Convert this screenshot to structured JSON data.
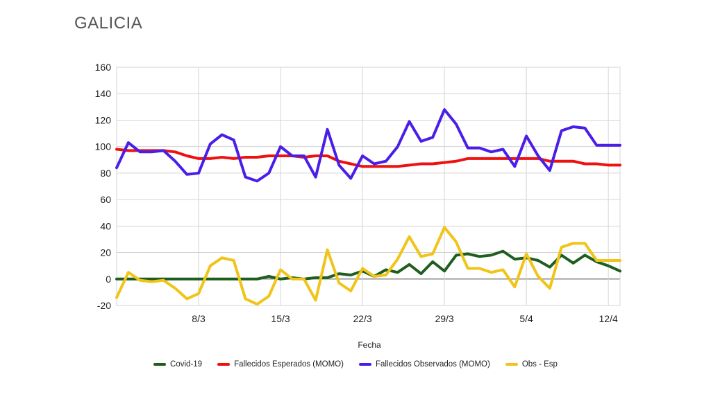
{
  "page": {
    "title": "GALICIA"
  },
  "chart_data": {
    "type": "line",
    "title": "GALICIA",
    "xlabel": "Fecha",
    "ylabel": "",
    "ylim": [
      -20,
      160
    ],
    "yticks": [
      -20,
      0,
      20,
      40,
      60,
      80,
      100,
      120,
      140,
      160
    ],
    "xlim": [
      1,
      42
    ],
    "x_ticks": [
      {
        "day": 8,
        "label": "8/3"
      },
      {
        "day": 15,
        "label": "15/3"
      },
      {
        "day": 22,
        "label": "22/3"
      },
      {
        "day": 29,
        "label": "29/3"
      },
      {
        "day": 36,
        "label": "5/4"
      },
      {
        "day": 43,
        "label": "12/4"
      }
    ],
    "x_days": [
      1,
      2,
      3,
      4,
      5,
      6,
      7,
      8,
      9,
      10,
      11,
      12,
      13,
      14,
      15,
      16,
      17,
      18,
      19,
      20,
      21,
      22,
      23,
      24,
      25,
      26,
      27,
      28,
      29,
      30,
      31,
      32,
      33,
      34,
      35,
      36,
      37,
      38,
      39,
      40,
      41,
      42,
      43,
      44
    ],
    "grid": true,
    "legend_position": "bottom",
    "series": [
      {
        "name": "Covid-19",
        "color": "#1e5e1e",
        "values": [
          0,
          0,
          0,
          0,
          0,
          0,
          0,
          0,
          0,
          0,
          0,
          0,
          0,
          2,
          0,
          1,
          0,
          1,
          1,
          4,
          3,
          6,
          2,
          7,
          5,
          11,
          4,
          13,
          6,
          18,
          19,
          17,
          18,
          21,
          15,
          16,
          14,
          9,
          18,
          12,
          18,
          13,
          10,
          6
        ]
      },
      {
        "name": "Fallecidos Esperados (MOMO)",
        "color": "#ee1111",
        "values": [
          98,
          97,
          97,
          97,
          97,
          96,
          93,
          91,
          91,
          92,
          91,
          92,
          92,
          93,
          93,
          93,
          92,
          93,
          93,
          89,
          87,
          85,
          85,
          85,
          85,
          86,
          87,
          87,
          88,
          89,
          91,
          91,
          91,
          91,
          91,
          91,
          91,
          89,
          89,
          89,
          87,
          87,
          86,
          86
        ]
      },
      {
        "name": "Fallecidos Observados (MOMO)",
        "color": "#4a1ee8",
        "values": [
          84,
          103,
          96,
          96,
          97,
          89,
          79,
          80,
          102,
          109,
          105,
          77,
          74,
          80,
          100,
          93,
          93,
          77,
          113,
          86,
          76,
          93,
          87,
          89,
          100,
          119,
          104,
          107,
          128,
          117,
          99,
          99,
          96,
          98,
          85,
          108,
          93,
          82,
          112,
          115,
          114,
          101,
          101,
          101
        ]
      },
      {
        "name": "Obs - Esp",
        "color": "#f0c419",
        "values": [
          -14,
          5,
          -1,
          -2,
          -1,
          -7,
          -15,
          -11,
          10,
          16,
          14,
          -15,
          -19,
          -13,
          7,
          0,
          0,
          -16,
          22,
          -3,
          -9,
          8,
          2,
          3,
          15,
          32,
          17,
          19,
          39,
          28,
          8,
          8,
          5,
          7,
          -6,
          19,
          2,
          -7,
          24,
          27,
          27,
          14,
          14,
          14
        ]
      }
    ]
  }
}
